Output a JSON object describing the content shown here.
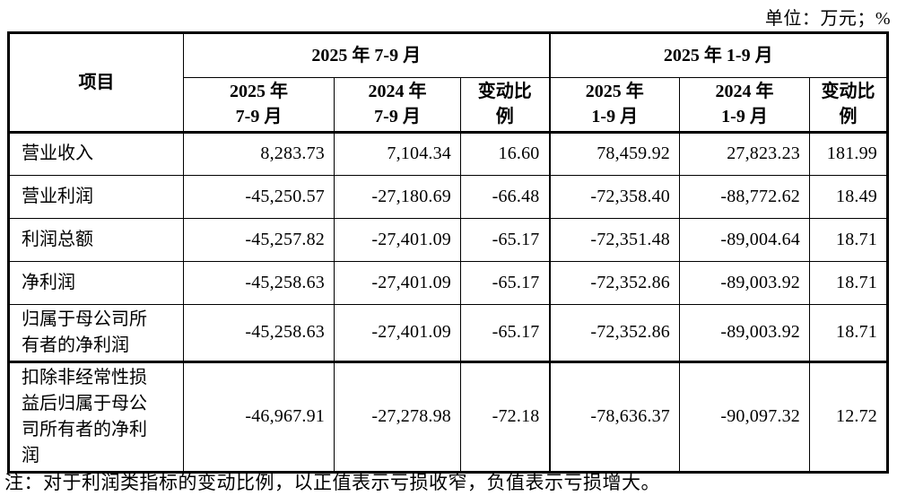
{
  "unit_label": "单位：万元；%",
  "table": {
    "header": {
      "item": "项目",
      "group1": "2025 年 7-9 月",
      "group2": "2025 年 1-9 月",
      "sub": [
        "2025 年\n7-9 月",
        "2024 年\n7-9 月",
        "变动比\n例",
        "2025 年\n1-9 月",
        "2024 年\n1-9 月",
        "变动比\n例"
      ]
    },
    "rows": [
      {
        "item": "营业收入",
        "values": [
          "8,283.73",
          "7,104.34",
          "16.60",
          "78,459.92",
          "27,823.23",
          "181.99"
        ]
      },
      {
        "item": "营业利润",
        "values": [
          "-45,250.57",
          "-27,180.69",
          "-66.48",
          "-72,358.40",
          "-88,772.62",
          "18.49"
        ]
      },
      {
        "item": "利润总额",
        "values": [
          "-45,257.82",
          "-27,401.09",
          "-65.17",
          "-72,351.48",
          "-89,004.64",
          "18.71"
        ]
      },
      {
        "item": "净利润",
        "values": [
          "-45,258.63",
          "-27,401.09",
          "-65.17",
          "-72,352.86",
          "-89,003.92",
          "18.71"
        ]
      },
      {
        "item": "归属于母公司所\n有者的净利润",
        "values": [
          "-45,258.63",
          "-27,401.09",
          "-65.17",
          "-72,352.86",
          "-89,003.92",
          "18.71"
        ]
      },
      {
        "item": "扣除非经常性损\n益后归属于母公\n司所有者的净利\n润",
        "values": [
          "-46,967.91",
          "-27,278.98",
          "-72.18",
          "-78,636.37",
          "-90,097.32",
          "12.72"
        ]
      }
    ]
  },
  "note": "注：对于利润类指标的变动比例，以正值表示亏损收窄，负值表示亏损增大。"
}
